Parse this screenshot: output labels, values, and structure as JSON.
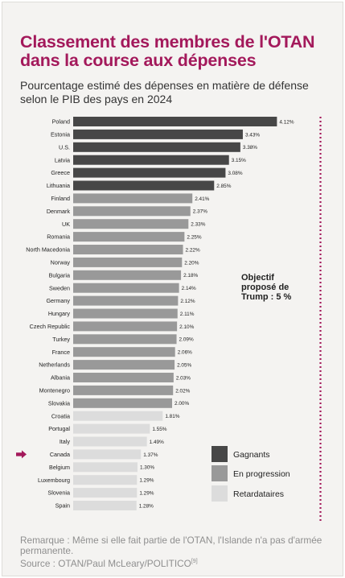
{
  "title": "Classement des membres de l'OTAN dans la course aux dépenses",
  "subtitle": "Pourcentage estimé des dépenses en matière de défense selon le PIB des pays en 2024",
  "note": "Remarque : Même si elle fait partie de l'OTAN, l'Islande n'a pas d'armée permanente.",
  "source": "Source : OTAN/Paul McLeary/POLITICO",
  "source_ref": "[9]",
  "target_label": [
    "Objectif",
    "proposé de",
    "Trump : 5 %"
  ],
  "highlighted_country": "Canada",
  "colors": {
    "gagnants": "#474747",
    "en_progression": "#999999",
    "retardataires": "#dcdcdc",
    "accent": "#a3195b"
  },
  "chart_data": {
    "type": "bar",
    "orientation": "horizontal",
    "categories": [
      "Poland",
      "Estonia",
      "U.S.",
      "Latvia",
      "Greece",
      "Lithuania",
      "Finland",
      "Denmark",
      "UK",
      "Romania",
      "North Macedonia",
      "Norway",
      "Bulgaria",
      "Sweden",
      "Germany",
      "Hungary",
      "Czech Republic",
      "Turkey",
      "France",
      "Netherlands",
      "Albania",
      "Montenegro",
      "Slovakia",
      "Croatia",
      "Portugal",
      "Italy",
      "Canada",
      "Belgium",
      "Luxembourg",
      "Slovenia",
      "Spain"
    ],
    "values": [
      4.12,
      3.43,
      3.38,
      3.15,
      3.08,
      2.85,
      2.41,
      2.37,
      2.33,
      2.25,
      2.22,
      2.2,
      2.18,
      2.14,
      2.12,
      2.11,
      2.1,
      2.09,
      2.06,
      2.05,
      2.03,
      2.02,
      2.0,
      1.81,
      1.55,
      1.49,
      1.37,
      1.3,
      1.29,
      1.29,
      1.28
    ],
    "value_labels": [
      "4.12%",
      "3.43%",
      "3.38%",
      "3.15%",
      "3.08%",
      "2.85%",
      "2.41%",
      "2.37%",
      "2.33%",
      "2.25%",
      "2.22%",
      "2.20%",
      "2.18%",
      "2.14%",
      "2.12%",
      "2.11%",
      "2.10%",
      "2.09%",
      "2.06%",
      "2.05%",
      "2.03%",
      "2.02%",
      "2.00%",
      "1.81%",
      "1.55%",
      "1.49%",
      "1.37%",
      "1.30%",
      "1.29%",
      "1.29%",
      "1.28%"
    ],
    "groups": [
      "gagnants",
      "gagnants",
      "gagnants",
      "gagnants",
      "gagnants",
      "gagnants",
      "en_progression",
      "en_progression",
      "en_progression",
      "en_progression",
      "en_progression",
      "en_progression",
      "en_progression",
      "en_progression",
      "en_progression",
      "en_progression",
      "en_progression",
      "en_progression",
      "en_progression",
      "en_progression",
      "en_progression",
      "en_progression",
      "en_progression",
      "retardataires",
      "retardataires",
      "retardataires",
      "retardataires",
      "retardataires",
      "retardataires",
      "retardataires",
      "retardataires"
    ],
    "target_value": 5,
    "xlim": [
      0,
      5
    ],
    "legend": [
      {
        "key": "gagnants",
        "label": "Gagnants"
      },
      {
        "key": "en_progression",
        "label": "En progression"
      },
      {
        "key": "retardataires",
        "label": "Retardataires"
      }
    ],
    "legend_position": "bottom-right",
    "grid": false
  }
}
